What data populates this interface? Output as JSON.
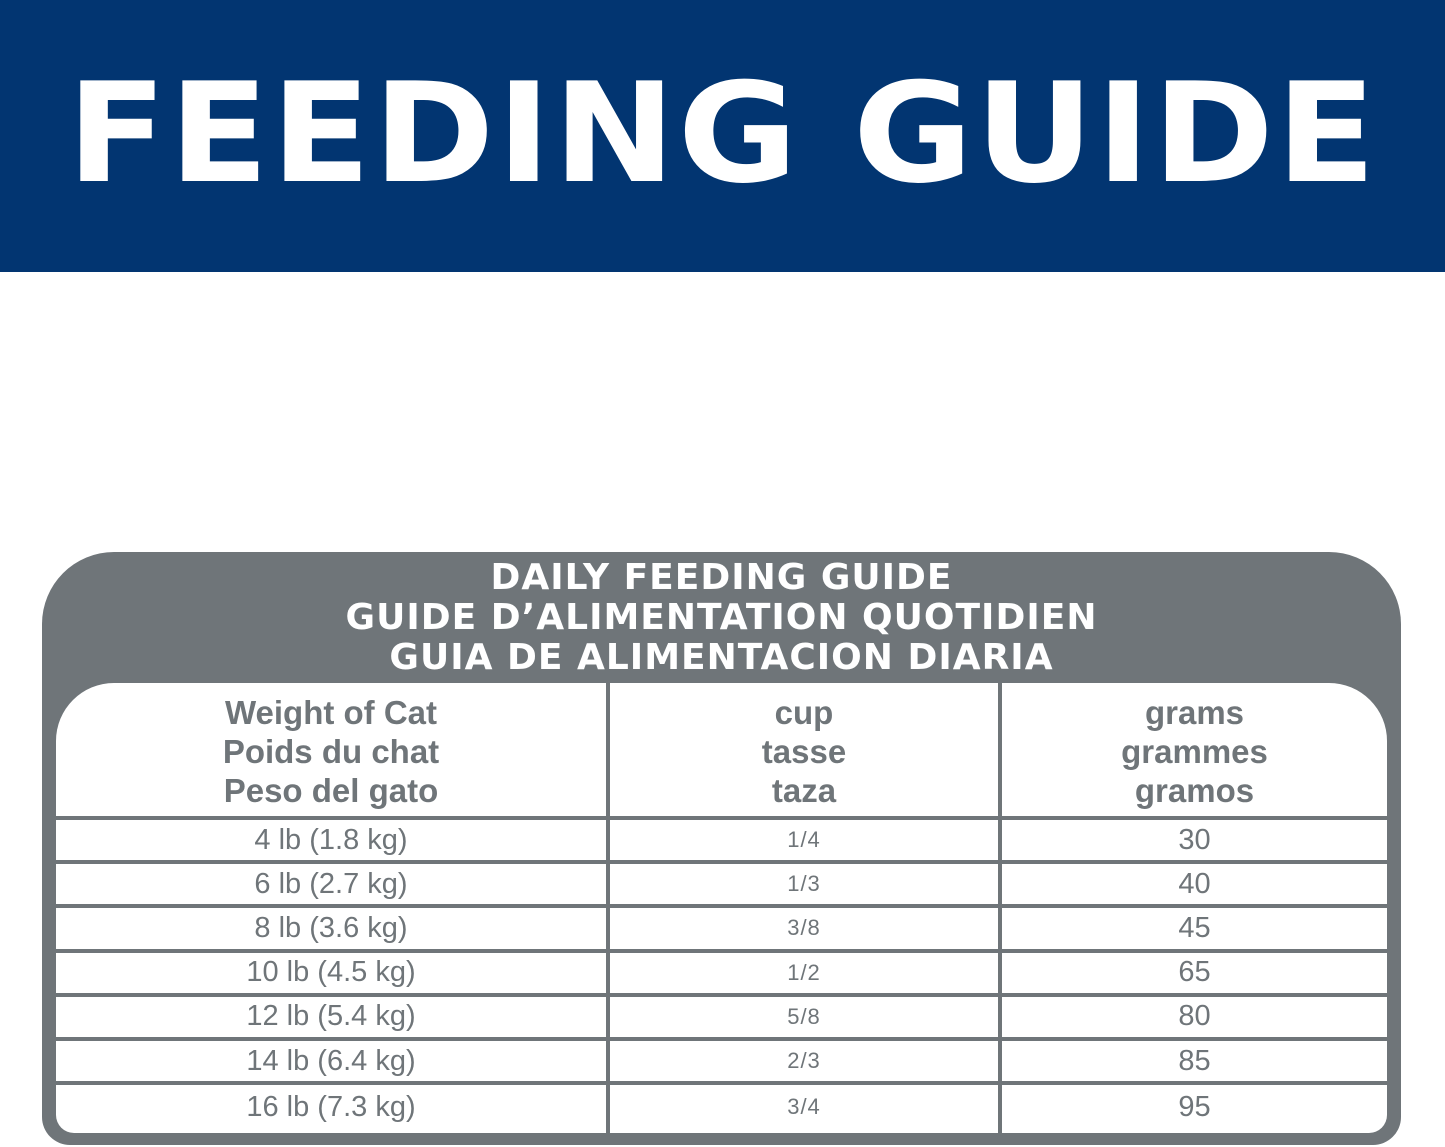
{
  "banner": {
    "title": "FEEDING GUIDE",
    "background_color": "#023571"
  },
  "panel": {
    "color": "#6f7579",
    "heading_lines": [
      "DAILY FEEDING GUIDE",
      "GUIDE D’ALIMENTATION QUOTIDIEN",
      "GUIA DE ALIMENTACION DIARIA"
    ]
  },
  "table": {
    "headers": [
      [
        "Weight of Cat",
        "Poids du chat",
        "Peso del gato"
      ],
      [
        "cup",
        "tasse",
        "taza"
      ],
      [
        "grams",
        "grammes",
        "gramos"
      ]
    ],
    "rows": [
      {
        "weight": "4 lb (1.8 kg)",
        "cup": "1/4",
        "grams": "30"
      },
      {
        "weight": "6 lb (2.7 kg)",
        "cup": "1/3",
        "grams": "40"
      },
      {
        "weight": "8 lb (3.6 kg)",
        "cup": "3/8",
        "grams": "45"
      },
      {
        "weight": "10 lb (4.5 kg)",
        "cup": "1/2",
        "grams": "65"
      },
      {
        "weight": "12 lb (5.4 kg)",
        "cup": "5/8",
        "grams": "80"
      },
      {
        "weight": "14 lb (6.4 kg)",
        "cup": "2/3",
        "grams": "85"
      },
      {
        "weight": "16 lb (7.3 kg)",
        "cup": "3/4",
        "grams": "95"
      }
    ]
  }
}
